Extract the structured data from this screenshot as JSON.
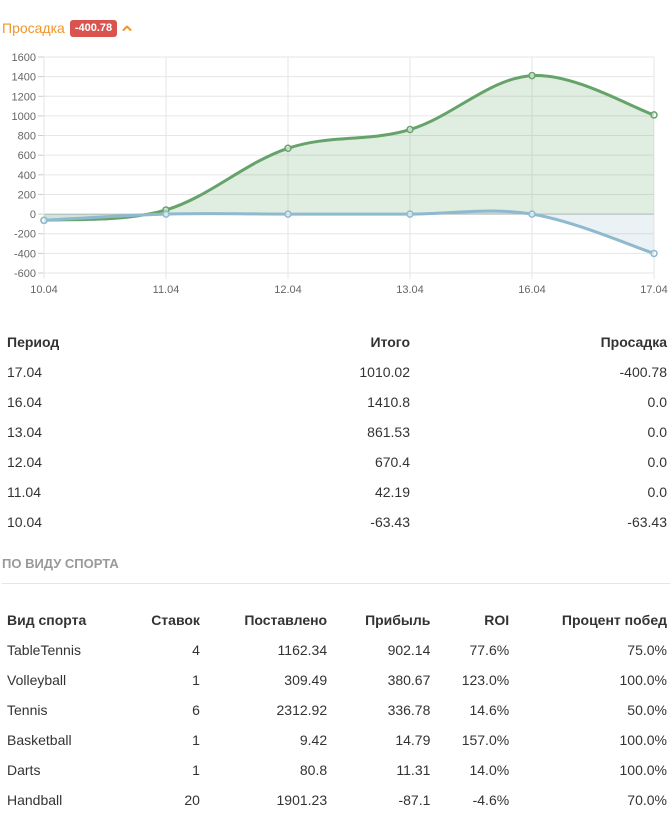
{
  "header": {
    "title": "Просадка",
    "badge": "-400.78",
    "chevron_icon": "chevron-up-icon",
    "title_color": "#f0962a",
    "badge_color": "#d9534f"
  },
  "chart_data": {
    "type": "line",
    "categories": [
      "10.04",
      "11.04",
      "12.04",
      "13.04",
      "16.04",
      "17.04"
    ],
    "series": [
      {
        "values": [
          -63.43,
          42.19,
          670.4,
          861.53,
          1410.8,
          1010.02
        ],
        "color": "#66a36a",
        "fill": "rgba(102,163,106,0.2)"
      },
      {
        "values": [
          -63.43,
          0.0,
          0.0,
          0.0,
          0.0,
          -400.78
        ],
        "color": "#8fb9ce",
        "fill": "rgba(143,185,206,0.18)"
      }
    ],
    "yticks": [
      1600,
      1400,
      1200,
      1000,
      800,
      600,
      400,
      200,
      0,
      -200,
      -400,
      -600
    ],
    "ylim": [
      -600,
      1600
    ],
    "grid": true,
    "legend": "none"
  },
  "period_table": {
    "headers": [
      "Период",
      "Итого",
      "Просадка"
    ],
    "rows": [
      [
        "17.04",
        "1010.02",
        "-400.78"
      ],
      [
        "16.04",
        "1410.8",
        "0.0"
      ],
      [
        "13.04",
        "861.53",
        "0.0"
      ],
      [
        "12.04",
        "670.4",
        "0.0"
      ],
      [
        "11.04",
        "42.19",
        "0.0"
      ],
      [
        "10.04",
        "-63.43",
        "-63.43"
      ]
    ]
  },
  "sport_section": {
    "title": "ПО ВИДУ СПОРТА",
    "headers": [
      "Вид спорта",
      "Ставок",
      "Поставлено",
      "Прибыль",
      "ROI",
      "Процент побед"
    ],
    "rows": [
      [
        "TableTennis",
        "4",
        "1162.34",
        "902.14",
        "77.6%",
        "75.0%"
      ],
      [
        "Volleyball",
        "1",
        "309.49",
        "380.67",
        "123.0%",
        "100.0%"
      ],
      [
        "Tennis",
        "6",
        "2312.92",
        "336.78",
        "14.6%",
        "50.0%"
      ],
      [
        "Basketball",
        "1",
        "9.42",
        "14.79",
        "157.0%",
        "100.0%"
      ],
      [
        "Darts",
        "1",
        "80.8",
        "11.31",
        "14.0%",
        "100.0%"
      ],
      [
        "Handball",
        "20",
        "1901.23",
        "-87.1",
        "-4.6%",
        "70.0%"
      ]
    ]
  }
}
